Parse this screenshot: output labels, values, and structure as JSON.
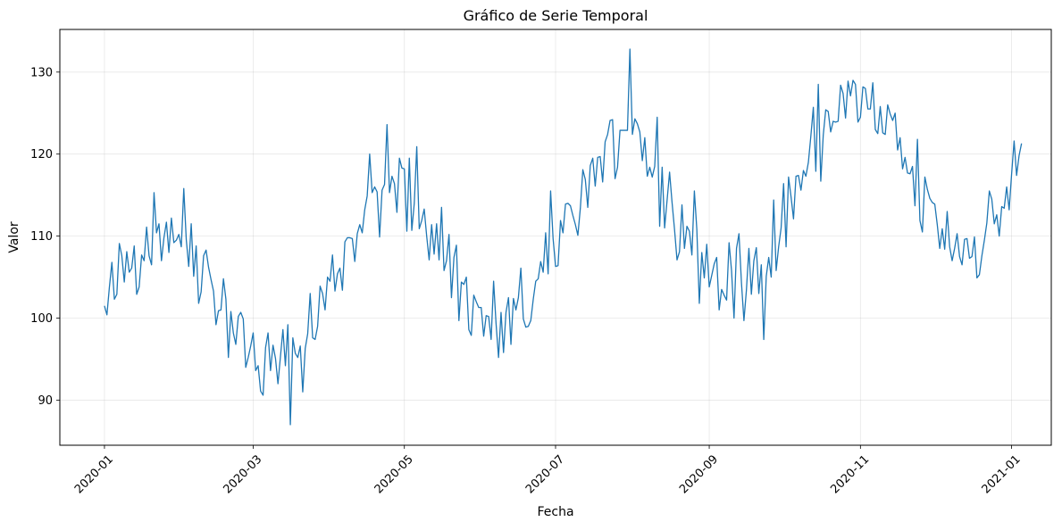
{
  "chart_data": {
    "type": "line",
    "title": "Gráfico de Serie Temporal",
    "xlabel": "Fecha",
    "ylabel": "Valor",
    "x_start": "2020-01-01",
    "x_frequency": "daily",
    "xlim": [
      "2019-12-14",
      "2021-01-17"
    ],
    "ylim": [
      84.5,
      135.2
    ],
    "x_ticks": [
      {
        "date": "2020-01-01",
        "label": "2020-01"
      },
      {
        "date": "2020-03-01",
        "label": "2020-03"
      },
      {
        "date": "2020-05-01",
        "label": "2020-05"
      },
      {
        "date": "2020-07-01",
        "label": "2020-07"
      },
      {
        "date": "2020-09-01",
        "label": "2020-09"
      },
      {
        "date": "2020-11-01",
        "label": "2020-11"
      },
      {
        "date": "2021-01-01",
        "label": "2021-01"
      }
    ],
    "y_ticks": [
      90,
      100,
      110,
      120,
      130
    ],
    "grid": true,
    "line_color": "#1f77b4",
    "series": [
      {
        "values": [
          101.5,
          100.4,
          103.8,
          106.8,
          102.3,
          102.9,
          109.1,
          107.6,
          104.4,
          108.1,
          105.6,
          106.1,
          108.8,
          102.9,
          103.8,
          107.7,
          107.0,
          111.1,
          107.6,
          106.5,
          115.3,
          110.4,
          111.5,
          107.0,
          109.8,
          111.7,
          108.0,
          112.2,
          109.2,
          109.5,
          110.2,
          108.7,
          115.8,
          109.6,
          106.3,
          111.5,
          105.1,
          108.8,
          101.8,
          103.2,
          107.6,
          108.3,
          106.2,
          104.7,
          103.3,
          99.2,
          100.9,
          101.0,
          104.8,
          102.3,
          95.2,
          100.8,
          98.2,
          96.8,
          100.2,
          100.7,
          99.9,
          94.0,
          95.2,
          96.6,
          98.2,
          93.6,
          94.2,
          91.1,
          90.6,
          96.4,
          98.2,
          93.6,
          96.7,
          95.1,
          92.0,
          95.3,
          98.6,
          94.2,
          99.2,
          87.0,
          97.6,
          95.7,
          95.2,
          96.6,
          91.0,
          96.3,
          98.1,
          103.0,
          97.6,
          97.4,
          99.0,
          103.9,
          103.0,
          101.0,
          105.0,
          104.5,
          107.7,
          103.3,
          105.4,
          106.1,
          103.4,
          109.3,
          109.8,
          109.8,
          109.7,
          106.9,
          110.3,
          111.4,
          110.4,
          113.2,
          114.9,
          120.0,
          115.3,
          116.0,
          115.4,
          109.9,
          115.6,
          116.3,
          123.6,
          115.3,
          117.3,
          116.4,
          112.9,
          119.5,
          118.3,
          118.2,
          110.6,
          119.5,
          110.7,
          114.0,
          120.9,
          110.9,
          111.9,
          113.3,
          110.0,
          107.1,
          111.4,
          107.8,
          111.5,
          107.1,
          113.5,
          105.8,
          107.0,
          110.2,
          102.5,
          107.4,
          108.9,
          99.7,
          104.4,
          104.1,
          105.0,
          98.6,
          97.9,
          102.8,
          102.0,
          101.3,
          101.3,
          97.8,
          100.3,
          100.2,
          97.4,
          104.5,
          99.3,
          95.2,
          100.7,
          95.8,
          100.7,
          102.5,
          96.8,
          102.4,
          101.0,
          102.5,
          106.1,
          99.9,
          98.9,
          99.0,
          99.7,
          102.3,
          104.5,
          104.8,
          106.9,
          105.6,
          110.4,
          105.4,
          115.5,
          109.7,
          106.3,
          106.4,
          111.9,
          110.4,
          113.9,
          114.0,
          113.7,
          112.5,
          111.4,
          110.1,
          113.4,
          118.1,
          116.9,
          113.5,
          118.6,
          119.5,
          116.1,
          119.6,
          119.7,
          116.6,
          121.5,
          122.4,
          124.1,
          124.2,
          117.0,
          118.4,
          122.9,
          122.9,
          122.9,
          122.9,
          132.8,
          122.4,
          124.3,
          123.7,
          122.7,
          119.2,
          122.0,
          117.3,
          118.4,
          117.2,
          118.5,
          124.5,
          111.2,
          118.4,
          111.0,
          114.4,
          117.8,
          114.1,
          110.8,
          107.1,
          108.1,
          113.8,
          108.5,
          111.2,
          110.6,
          107.7,
          115.5,
          110.8,
          101.8,
          108.0,
          104.9,
          109.0,
          103.8,
          105.2,
          106.6,
          107.4,
          101.0,
          103.5,
          102.8,
          102.2,
          109.2,
          105.8,
          100.0,
          108.5,
          110.3,
          104.3,
          99.7,
          103.4,
          108.5,
          102.9,
          107.0,
          108.6,
          103.0,
          106.5,
          97.4,
          105.1,
          107.4,
          105.0,
          114.4,
          105.8,
          108.7,
          111.0,
          116.4,
          108.7,
          117.2,
          114.8,
          112.1,
          117.3,
          117.4,
          115.6,
          118.0,
          117.3,
          119.0,
          122.2,
          125.7,
          117.9,
          128.5,
          116.7,
          122.3,
          125.4,
          125.2,
          122.7,
          124.0,
          123.9,
          124.0,
          128.4,
          127.4,
          124.4,
          128.9,
          127.1,
          129.0,
          128.5,
          123.9,
          124.5,
          128.2,
          128.0,
          125.5,
          125.5,
          128.7,
          123.0,
          122.5,
          125.8,
          122.6,
          122.4,
          126.0,
          124.9,
          124.1,
          125.0,
          120.5,
          122.0,
          118.2,
          119.6,
          117.7,
          117.6,
          118.5,
          113.7,
          121.8,
          111.9,
          110.5,
          117.2,
          115.7,
          114.6,
          114.1,
          113.9,
          111.4,
          108.5,
          110.9,
          108.4,
          113.0,
          108.7,
          107.0,
          108.5,
          110.3,
          107.5,
          106.5,
          109.6,
          109.7,
          107.3,
          107.5,
          109.9,
          104.9,
          105.3,
          107.6,
          109.5,
          111.6,
          115.5,
          114.5,
          111.5,
          112.6,
          110.0,
          113.6,
          113.4,
          116.0,
          113.2,
          117.6,
          121.6,
          117.4,
          119.8,
          121.3
        ]
      }
    ]
  }
}
